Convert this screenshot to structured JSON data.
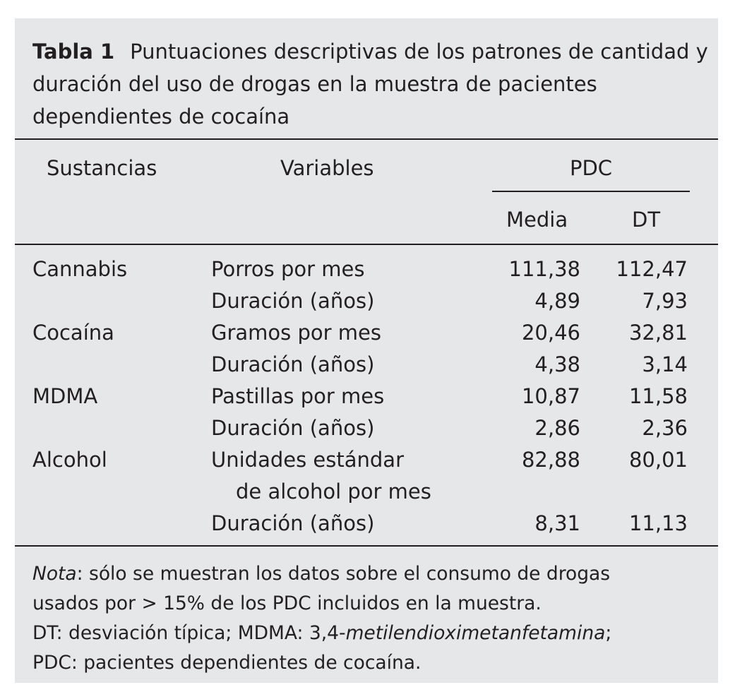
{
  "title": {
    "label": "Tabla 1",
    "text": "Puntuaciones descriptivas de los patrones de cantidad y duración del uso de drogas en la muestra de pacientes dependientes de cocaína"
  },
  "headers": {
    "sustancias": "Sustancias",
    "variables": "Variables",
    "group": "PDC",
    "media": "Media",
    "dt": "DT"
  },
  "rows": [
    {
      "sustancia": "Cannabis",
      "variable": "Porros por mes",
      "media": "111,38",
      "dt": "112,47"
    },
    {
      "sustancia": "",
      "variable": "Duración (años)",
      "media": "4,89",
      "dt": "7,93"
    },
    {
      "sustancia": "Cocaína",
      "variable": "Gramos por mes",
      "media": "20,46",
      "dt": "32,81"
    },
    {
      "sustancia": "",
      "variable": "Duración (años)",
      "media": "4,38",
      "dt": "3,14"
    },
    {
      "sustancia": "MDMA",
      "variable": "Pastillas por mes",
      "media": "10,87",
      "dt": "11,58"
    },
    {
      "sustancia": "",
      "variable": "Duración (años)",
      "media": "2,86",
      "dt": "2,36"
    },
    {
      "sustancia": "Alcohol",
      "variable": "Unidades estándar",
      "variable_cont": "de alcohol por mes",
      "media": "82,88",
      "dt": "80,01"
    },
    {
      "sustancia": "",
      "variable": "Duración (años)",
      "media": "8,31",
      "dt": "11,13"
    }
  ],
  "note": {
    "label": "Nota",
    "line1": ": sólo se muestran los datos sobre el consumo de drogas",
    "line2": "usados por > 15% de los PDC incluidos en la muestra.",
    "line3a": "DT: desviación típica; MDMA: 3,4-",
    "line3b": "metilendioximetanfetamina",
    "line3c": ";",
    "line4": "PDC: pacientes dependientes de cocaína."
  }
}
